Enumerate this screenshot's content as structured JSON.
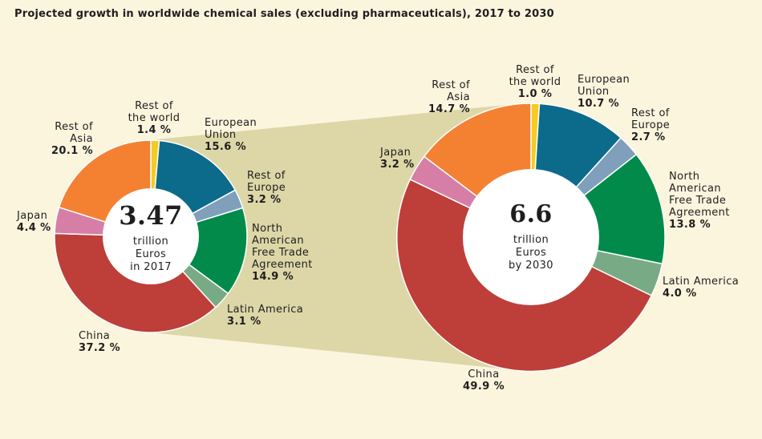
{
  "title": "Projected growth in worldwide chemical sales (excluding pharmaceuticals), 2017 to 2030",
  "colors": {
    "background": "#fcf5de",
    "connector": "#ddd7a8",
    "rest_of_world": "#f4cc22",
    "european_union": "#0c6a8b",
    "rest_of_europe": "#7f9fbb",
    "nafta": "#028a4b",
    "latin_america": "#79aa86",
    "china": "#be3e39",
    "japan": "#d67ea6",
    "rest_of_asia": "#f48132"
  },
  "chart_data": [
    {
      "type": "pie",
      "title": "3.47 trillion Euros in 2017",
      "total": "3.47",
      "unit_line1": "trillion",
      "unit_line2": "Euros",
      "unit_line3": "in 2017",
      "slices": [
        {
          "key": "rest_of_world",
          "name_lines": [
            "Rest of",
            "the world"
          ],
          "value": 1.4,
          "value_label": "1.4 %"
        },
        {
          "key": "european_union",
          "name_lines": [
            "European",
            "Union"
          ],
          "value": 15.6,
          "value_label": "15.6 %"
        },
        {
          "key": "rest_of_europe",
          "name_lines": [
            "Rest of",
            "Europe"
          ],
          "value": 3.2,
          "value_label": "3.2 %"
        },
        {
          "key": "nafta",
          "name_lines": [
            "North",
            "American",
            "Free Trade",
            "Agreement"
          ],
          "value": 14.9,
          "value_label": "14.9 %"
        },
        {
          "key": "latin_america",
          "name_lines": [
            "Latin America"
          ],
          "value": 3.1,
          "value_label": "3.1 %"
        },
        {
          "key": "china",
          "name_lines": [
            "China"
          ],
          "value": 37.2,
          "value_label": "37.2 %"
        },
        {
          "key": "japan",
          "name_lines": [
            "Japan"
          ],
          "value": 4.4,
          "value_label": "4.4 %"
        },
        {
          "key": "rest_of_asia",
          "name_lines": [
            "Rest of",
            "Asia"
          ],
          "value": 20.1,
          "value_label": "20.1 %"
        }
      ]
    },
    {
      "type": "pie",
      "title": "6.6 trillion Euros by 2030",
      "total": "6.6",
      "unit_line1": "trillion",
      "unit_line2": "Euros",
      "unit_line3": "by 2030",
      "slices": [
        {
          "key": "rest_of_world",
          "name_lines": [
            "Rest of",
            "the world"
          ],
          "value": 1.0,
          "value_label": "1.0 %"
        },
        {
          "key": "european_union",
          "name_lines": [
            "European",
            "Union"
          ],
          "value": 10.7,
          "value_label": "10.7 %"
        },
        {
          "key": "rest_of_europe",
          "name_lines": [
            "Rest of",
            "Europe"
          ],
          "value": 2.7,
          "value_label": "2.7 %"
        },
        {
          "key": "nafta",
          "name_lines": [
            "North",
            "American",
            "Free Trade",
            "Agreement"
          ],
          "value": 13.8,
          "value_label": "13.8 %"
        },
        {
          "key": "latin_america",
          "name_lines": [
            "Latin America"
          ],
          "value": 4.0,
          "value_label": "4.0 %"
        },
        {
          "key": "china",
          "name_lines": [
            "China"
          ],
          "value": 49.9,
          "value_label": "49.9 %"
        },
        {
          "key": "japan",
          "name_lines": [
            "Japan"
          ],
          "value": 3.2,
          "value_label": "3.2 %"
        },
        {
          "key": "rest_of_asia",
          "name_lines": [
            "Rest of",
            "Asia"
          ],
          "value": 14.7,
          "value_label": "14.7 %"
        }
      ]
    }
  ]
}
